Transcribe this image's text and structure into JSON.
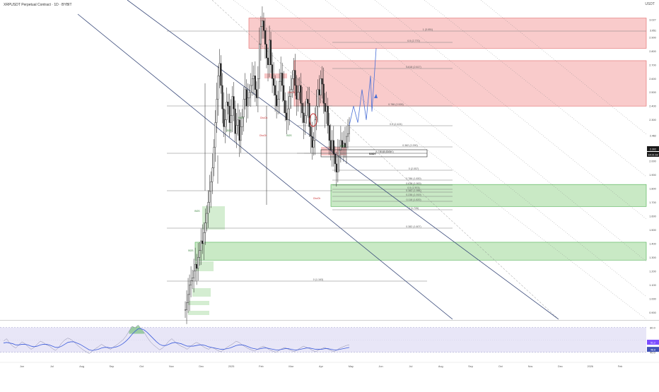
{
  "header": {
    "symbol_title": "XRPUSDT Perpetual Contract · 1D · BYBIT",
    "currency": "USDT"
  },
  "colors": {
    "supply_zone": "#f7b9b9",
    "supply_zone_border": "#e06666",
    "demand_zone": "#b7e1b2",
    "demand_zone_border": "#4caf50",
    "candle": "#1a1a1a",
    "level_line": "#7f7f7f",
    "trendline": "#3a4a7a",
    "rsi_line": "#3b5bdb",
    "rsi_band": "#e8e6f7",
    "rsi_overbought_fill": "#4caf50",
    "projection": "#4a6fd6",
    "circle_marker": "#c62828",
    "price_badge": "#1a1a1a",
    "rsi_badge_1": "#7c4dff",
    "rsi_badge_2": "#3f51b5"
  },
  "chart_data": [
    {
      "type": "line",
      "title": "",
      "y_axis_ticks": [
        "3.027",
        "2.900",
        "2.800",
        "2.700",
        "2.600",
        "2.500",
        "2.400",
        "2.300",
        "2.200",
        "2.100",
        "2.000",
        "1.900",
        "1.800",
        "1.700",
        "1.600",
        "1.500",
        "1.400",
        "1.300",
        "1.200",
        "1.100",
        "1.000",
        "0.900"
      ],
      "price_badges": [
        "3.051",
        "2.302",
        "14:21:18",
        "2.462"
      ],
      "x_axis_ticks": [
        "Jun",
        "Jul",
        "Aug",
        "Sep",
        "Oct",
        "Nov",
        "Dec",
        "2025",
        "Feb",
        "Mar",
        "Apr",
        "May",
        "Jun",
        "Jul",
        "Aug",
        "Sep",
        "Oct",
        "Nov",
        "Dec",
        "2026",
        "Feb"
      ],
      "ylim": [
        0.85,
        3.12
      ],
      "level_labels": [
        "1 (3.051)",
        "0.5 (2.770)",
        "0.618 (2.617)",
        "0.786 (2.526)",
        "0.5 (2.424)",
        "0.382 (2.290)",
        "0.236 (2.300)",
        "0.18 (2.290)",
        "0 (2.057)",
        "0.786 (1.830)",
        "0.618 (1.900)",
        "0.5 (1.974)",
        "0.382 (1.944)",
        "0.236 (1.919)",
        "0.118 (1.820)",
        "0 (1.726)",
        "0.382 (1.607)",
        "0 (1.163)"
      ],
      "zone_labels": [
        "ChoCh",
        "ChoCh",
        "ChoCh",
        "ChoCh",
        "BOS",
        "BOS",
        "BOS",
        "BOS",
        "BOS",
        "BOS"
      ],
      "annotations": [
        "S3DT"
      ],
      "supply_zones": [
        [
          2.82,
          3.04
        ],
        [
          2.4,
          2.73
        ]
      ],
      "demand_zones": [
        [
          1.67,
          1.83
        ],
        [
          1.28,
          1.41
        ]
      ],
      "series": [
        {
          "values": [
            0.92,
            0.97,
            1.03,
            1.1,
            1.13,
            1.15,
            1.2,
            1.25,
            1.22,
            1.3,
            1.35,
            1.42,
            1.4,
            1.48,
            1.55,
            1.62,
            1.7,
            1.78,
            1.85,
            1.95,
            2.1,
            2.28,
            2.45,
            2.62,
            2.71,
            2.55,
            2.38,
            2.25,
            2.3,
            2.43,
            2.4,
            2.28,
            2.33,
            2.47,
            2.38,
            2.2,
            2.26,
            2.3,
            2.15,
            2.25,
            2.32,
            2.45,
            2.52,
            2.4,
            2.46,
            2.5,
            2.55,
            2.6,
            2.62,
            2.52,
            2.46,
            2.6,
            2.85,
            2.98,
            3.02,
            2.95,
            2.85,
            2.75,
            2.7,
            2.88,
            2.7,
            2.6,
            2.55,
            2.48,
            2.4,
            2.45,
            2.58,
            2.64,
            2.55,
            2.44,
            2.35,
            2.3,
            2.38,
            2.47,
            2.52,
            2.6,
            2.66,
            2.55,
            2.45,
            2.5,
            2.55,
            2.42,
            2.35,
            2.28,
            2.33,
            2.45,
            2.42,
            2.25,
            2.18,
            2.1,
            2.15,
            2.3,
            2.4,
            2.52,
            2.48,
            2.6,
            2.56,
            2.42,
            2.36,
            2.4,
            2.26,
            2.15,
            2.08,
            2.15,
            2.05,
            1.98,
            1.92,
            2.04,
            2.08,
            2.15,
            2.1,
            2.13,
            2.1,
            2.18,
            2.2,
            2.26
          ]
        }
      ],
      "projection_path": [
        [
          2.26
        ],
        [
          2.4
        ],
        [
          2.28
        ],
        [
          2.52
        ],
        [
          2.3
        ],
        [
          2.62
        ],
        [
          2.36
        ],
        [
          2.82
        ]
      ]
    },
    {
      "type": "line",
      "title": "",
      "y_axis_ticks": [
        "80.0",
        "40.0"
      ],
      "rsi_badges": [
        "51.2",
        "48.8"
      ],
      "ylim": [
        25,
        90
      ],
      "series": [
        {
          "values": [
            58,
            62,
            55,
            50,
            47,
            52,
            57,
            54,
            49,
            45,
            48,
            53,
            58,
            56,
            52,
            50,
            46,
            43,
            48,
            55,
            60,
            63,
            61,
            57,
            52,
            48,
            44,
            41,
            38,
            42,
            46,
            49,
            53,
            50,
            47,
            45,
            49,
            52,
            56,
            60,
            66,
            74,
            82,
            80,
            84,
            78,
            72,
            64,
            57,
            52,
            48,
            44,
            47,
            52,
            58,
            62,
            57,
            53,
            50,
            48,
            45,
            49,
            53,
            56,
            54,
            50,
            47,
            45,
            48,
            46,
            43,
            41,
            44,
            48,
            51,
            54,
            58,
            56,
            52,
            49,
            46,
            44,
            42,
            45,
            48,
            50,
            47,
            44,
            42,
            40,
            43,
            46,
            48,
            45,
            43,
            41,
            44,
            47,
            50,
            48,
            46,
            43,
            41,
            44,
            46,
            48,
            45,
            43,
            41,
            44,
            47,
            49,
            51,
            52
          ]
        },
        {
          "values": [
            55,
            56,
            55,
            54,
            52,
            52,
            53,
            53,
            52,
            50,
            49,
            50,
            52,
            53,
            53,
            52,
            50,
            48,
            48,
            50,
            53,
            56,
            57,
            57,
            55,
            53,
            50,
            47,
            44,
            43,
            44,
            45,
            47,
            48,
            48,
            47,
            48,
            49,
            51,
            54,
            58,
            63,
            69,
            74,
            78,
            78,
            76,
            72,
            67,
            62,
            57,
            53,
            51,
            51,
            53,
            55,
            56,
            55,
            54,
            52,
            50,
            50,
            50,
            51,
            52,
            52,
            51,
            49,
            48,
            47,
            46,
            45,
            45,
            46,
            47,
            49,
            51,
            52,
            52,
            51,
            49,
            47,
            46,
            45,
            46,
            47,
            47,
            46,
            45,
            44,
            44,
            45,
            46,
            46,
            45,
            44,
            44,
            45,
            46,
            47,
            47,
            46,
            45,
            45,
            45,
            46,
            46,
            45,
            44,
            44,
            45,
            46,
            47,
            48
          ]
        }
      ]
    }
  ]
}
